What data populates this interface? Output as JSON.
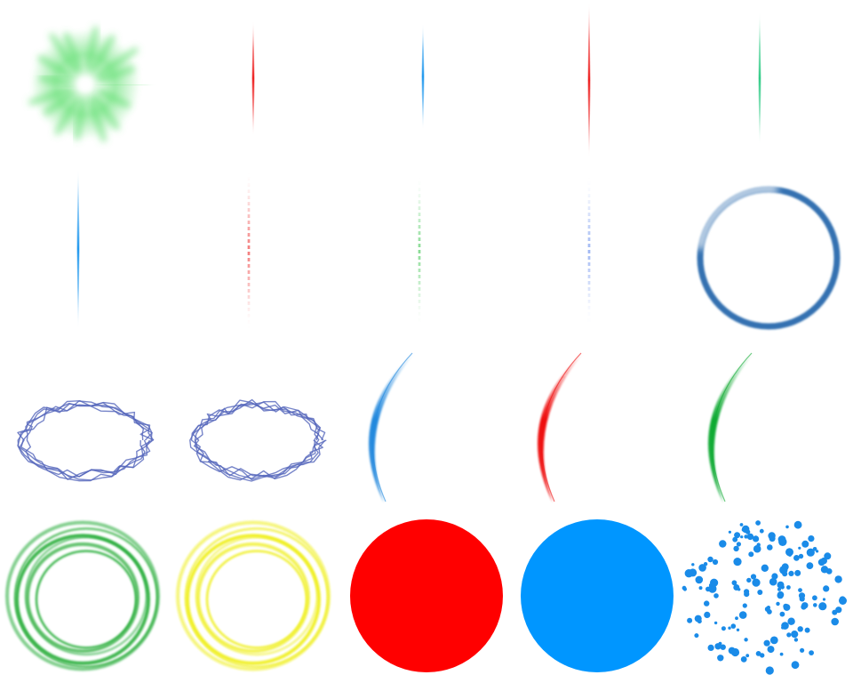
{
  "sheet": {
    "columns": 5,
    "rows": 4,
    "background": "#ffffff"
  },
  "sprites": [
    {
      "kind": "starburst",
      "color": "#55dd66"
    },
    {
      "kind": "streak",
      "color": "#ee2222"
    },
    {
      "kind": "streak",
      "color": "#2299ee"
    },
    {
      "kind": "streak",
      "color": "#ee2222"
    },
    {
      "kind": "streak",
      "color": "#33cc88"
    },
    {
      "kind": "streak",
      "color": "#2299ee"
    },
    {
      "kind": "dashed-streak",
      "color": "#ee4444"
    },
    {
      "kind": "dashed-streak",
      "color": "#55cc66"
    },
    {
      "kind": "dashed-streak",
      "color": "#7799ee"
    },
    {
      "kind": "ring",
      "color": "#1f63a8"
    },
    {
      "kind": "lightning-ring",
      "color": "#5566bb"
    },
    {
      "kind": "lightning-ring",
      "color": "#5566bb"
    },
    {
      "kind": "arc-slash",
      "color": "#2288dd"
    },
    {
      "kind": "arc-slash",
      "color": "#ee1111"
    },
    {
      "kind": "arc-slash",
      "color": "#11aa33"
    },
    {
      "kind": "concentric-rings",
      "color": "#22aa33"
    },
    {
      "kind": "concentric-rings",
      "color": "#eeee11"
    },
    {
      "kind": "solid-disc",
      "color": "#ff0000"
    },
    {
      "kind": "solid-disc",
      "color": "#0096ff"
    },
    {
      "kind": "dot-cloud",
      "color": "#1a8be8"
    }
  ]
}
